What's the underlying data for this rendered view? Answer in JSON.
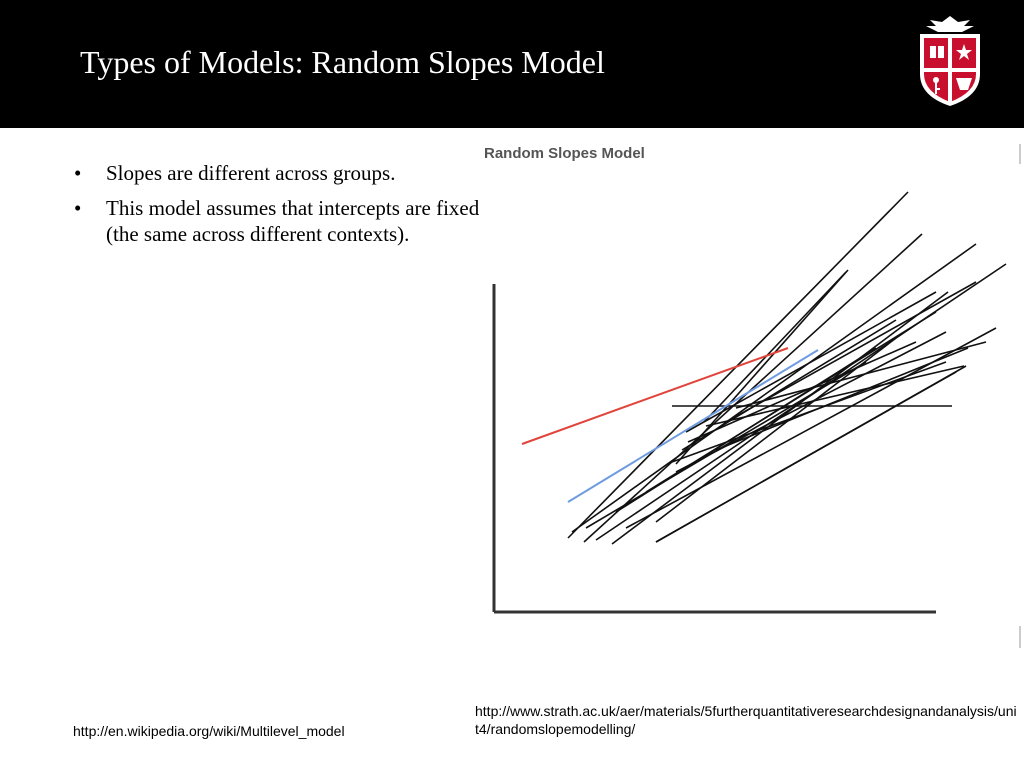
{
  "slide": {
    "title": "Types of Models: Random Slopes Model",
    "bullets": [
      "Slopes are different across groups.",
      "This model assumes that intercepts are fixed (the same across different contexts)."
    ],
    "bullet_symbol": "•"
  },
  "figure": {
    "title": "Random Slopes Model"
  },
  "sources": {
    "left_url": "http://en.wikipedia.org/wiki/Multilevel_model",
    "right_url": "http://www.strath.ac.uk/aer/materials/5furtherquantitativeresearchdesignandanalysis/unit4/randomslopemodelling/"
  },
  "colors": {
    "header_bg": "#000000",
    "title_text": "#ffffff",
    "highlight_line_red": "#e0443a",
    "highlight_line_blue": "#6f9be0",
    "lines": "#111111",
    "logo_red": "#c8102e"
  }
}
